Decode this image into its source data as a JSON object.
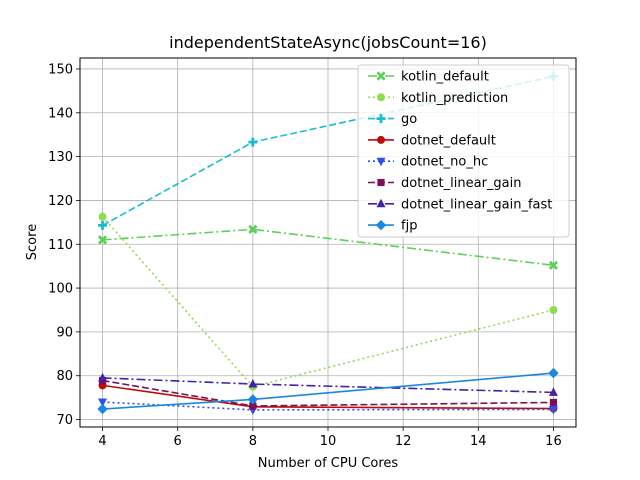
{
  "chart_data": {
    "type": "line",
    "title": "independentStateAsync(jobsCount=16)",
    "xlabel": "Number of CPU Cores",
    "ylabel": "Score",
    "x": [
      4,
      8,
      16
    ],
    "xlim": [
      3.4,
      16.6
    ],
    "ylim": [
      68.3,
      152.5
    ],
    "xticks": [
      4,
      6,
      8,
      10,
      12,
      14,
      16
    ],
    "yticks": [
      70,
      80,
      90,
      100,
      110,
      120,
      130,
      140,
      150
    ],
    "grid": true,
    "legend_position": "top-right",
    "series": [
      {
        "name": "kotlin_default",
        "values": [
          111.0,
          113.4,
          105.2
        ],
        "color": "#5ccf5c",
        "dash": "dashdot",
        "marker": "x"
      },
      {
        "name": "kotlin_prediction",
        "values": [
          116.3,
          77.5,
          95.0
        ],
        "color": "#8fdc52",
        "dash": "dot",
        "marker": "circle"
      },
      {
        "name": "go",
        "values": [
          114.3,
          133.3,
          148.3
        ],
        "color": "#17becf",
        "dash": "dash",
        "marker": "plus"
      },
      {
        "name": "dotnet_default",
        "values": [
          77.8,
          72.9,
          72.5
        ],
        "color": "#bd0c0c",
        "dash": "solid",
        "marker": "circle"
      },
      {
        "name": "dotnet_no_hc",
        "values": [
          74.0,
          72.2,
          72.3
        ],
        "color": "#2b50ee",
        "dash": "dot",
        "marker": "triangle-down"
      },
      {
        "name": "dotnet_linear_gain",
        "values": [
          78.9,
          73.1,
          73.9
        ],
        "color": "#7d0f56",
        "dash": "dash",
        "marker": "square"
      },
      {
        "name": "dotnet_linear_gain_fast",
        "values": [
          79.5,
          78.1,
          76.2
        ],
        "color": "#4520a8",
        "dash": "dashdot",
        "marker": "triangle-up"
      },
      {
        "name": "fjp",
        "values": [
          72.4,
          74.6,
          80.6
        ],
        "color": "#1a88e0",
        "dash": "solid",
        "marker": "diamond"
      }
    ]
  }
}
